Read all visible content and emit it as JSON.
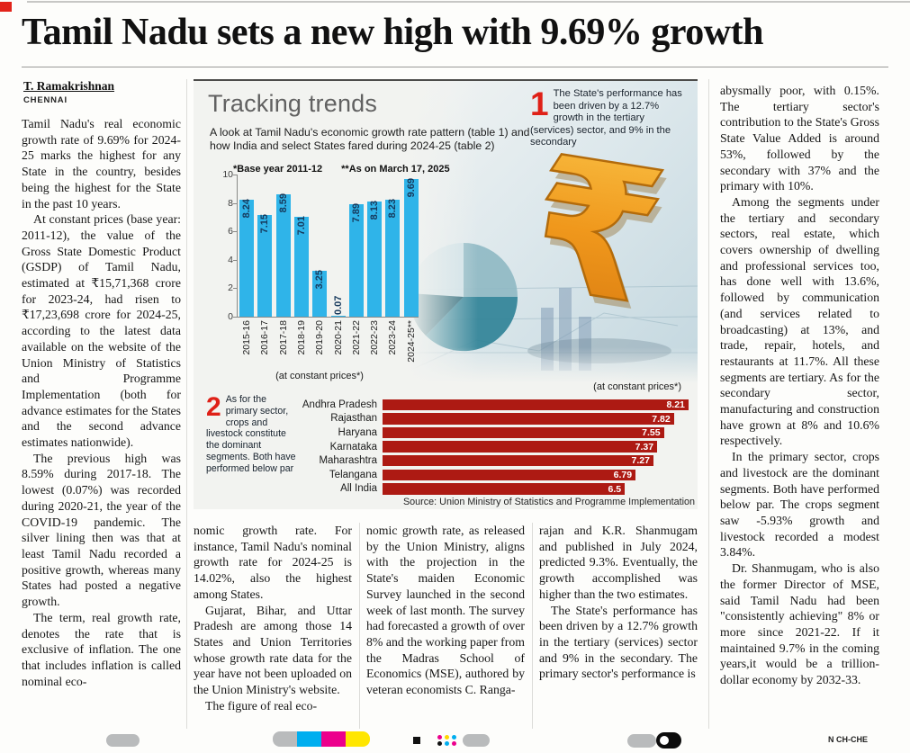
{
  "masthead": {
    "headline": "Tamil Nadu sets a new high with 9.69% growth",
    "edition_code": "N CH-CHE"
  },
  "byline": {
    "author": "T. Ramakrishnan",
    "place": "CHENNAI"
  },
  "article": {
    "left_column": [
      "Tamil Nadu's real economic growth rate of 9.69% for 2024-25 marks the highest for any State in the country, besides being the highest for the State in the past 10 years.",
      "At constant prices (base year: 2011-12), the value of the Gross State Domestic Product (GSDP) of Tamil Nadu, estimated at ₹15,71,368 crore for 2023-24, had risen to ₹17,23,698 crore for 2024-25, according to the latest data available on the website of the Union Ministry of Statistics and Programme Implementation (both for advance estimates for the States and the second advance estimates nationwide).",
      "The previous high was 8.59% during 2017-18. The lowest (0.07%) was recorded during 2020-21, the year of the COVID-19 pandemic. The silver lining then was that at least Tamil Nadu recorded a positive growth, whereas many States had posted a negative growth.",
      "The term, real growth rate, denotes the rate that is exclusive of inflation. The one that includes inflation is called nominal eco-"
    ],
    "bottom_columns": {
      "c1": [
        "nomic growth rate. For instance, Tamil Nadu's nominal growth rate for 2024-25 is 14.02%, also the highest among States.",
        "Gujarat, Bihar, and Uttar Pradesh are among those 14 States and Union Territories whose growth rate data for the year have not been uploaded on the Union Ministry's website.",
        "The figure of real eco-"
      ],
      "c2": [
        "nomic growth rate, as released by the Union Ministry, aligns with the projection in the State's maiden Economic Survey launched in the second week of last month. The survey had forecasted a growth of over 8% and the working paper from the Madras School of Economics (MSE), authored by veteran economists C. Ranga-"
      ],
      "c3": [
        "rajan and K.R. Shanmugam and published in July 2024, predicted 9.3%. Eventually, the growth accomplished was higher than the two estimates.",
        "The State's performance has been driven by a 12.7% growth in the tertiary (services) sector and 9% in the secondary. The primary sector's performance is"
      ]
    },
    "right_column": [
      "abysmally poor, with 0.15%. The tertiary sector's contribution to the State's Gross State Value Added is around 53%, followed by the secondary with 37% and the primary with 10%.",
      "Among the segments under the tertiary and secondary sectors, real estate, which covers ownership of dwelling and professional services too, has done well with 13.6%, followed by communication (and services related to broadcasting) at 13%, and trade, repair, hotels, and restaurants at 11.7%. All these segments are tertiary. As for the secondary sector, manufacturing and construction have grown at 8% and 10.6% respectively.",
      "In the primary sector, crops and livestock are the dominant segments. Both have performed below par. The crops segment saw -5.93% growth and livestock recorded a modest 3.84%.",
      "Dr. Shanmugam, who is also the former Director of MSE, said Tamil Nadu had been \"consistently achieving\" 8% or more since 2021-22. If it maintained 9.7% in the coming years,it would be a trillion-dollar economy by 2032-33."
    ]
  },
  "graphic": {
    "title": "Tracking trends",
    "intro": "A look at Tamil Nadu's economic growth rate pattern (table 1) and how India and select States fared during 2024-25 (table 2)",
    "note_base_year": "*Base year 2011-12",
    "note_as_on": "**As on March 17, 2025",
    "callout1": {
      "number": "1",
      "text": "The State's performance has been driven by a 12.7% growth in the tertiary (services) sector, and 9% in the secondary"
    },
    "callout2": {
      "number": "2",
      "text": "As for the primary sector, crops and livestock constitute the dominant segments. Both have performed below par"
    },
    "axis_note": "(at constant prices*)",
    "source": "Source: Union Ministry of Statistics and Programme Implementation"
  },
  "chart_data": [
    {
      "type": "bar",
      "title": "Tamil Nadu's economic growth rate pattern (table 1)",
      "categories": [
        "2015-16",
        "2016-17",
        "2017-18",
        "2018-19",
        "2019-20",
        "2020-21",
        "2021-22",
        "2022-23",
        "2023-24",
        "2024-25**"
      ],
      "values": [
        8.24,
        7.15,
        8.59,
        7.01,
        3.25,
        0.07,
        7.89,
        8.13,
        8.23,
        9.69
      ],
      "xlabel": "(at constant prices*)",
      "ylabel": "",
      "ylim": [
        0,
        10
      ],
      "yticks": [
        0,
        2,
        4,
        6,
        8,
        10
      ],
      "grid": false,
      "legend": "none",
      "bar_color": "#2fb4e9",
      "value_label_color": "#16395c"
    },
    {
      "type": "bar",
      "orientation": "horizontal",
      "title": "How India and select States fared during 2024-25 (table 2)",
      "categories": [
        "Andhra Pradesh",
        "Rajasthan",
        "Haryana",
        "Karnataka",
        "Maharashtra",
        "Telangana",
        "All India"
      ],
      "values": [
        8.21,
        7.82,
        7.55,
        7.37,
        7.27,
        6.79,
        6.5
      ],
      "xlabel": "(at constant prices*)",
      "grid": false,
      "legend": "none",
      "bar_color": "#ad1a13",
      "value_label_color": "#ffffff"
    }
  ],
  "colors": {
    "registration_red": "#e2231a",
    "callout_red": "#df2017",
    "press_cyan": "#00aeef",
    "press_magenta": "#ec008c",
    "press_yellow": "#ffe600"
  }
}
